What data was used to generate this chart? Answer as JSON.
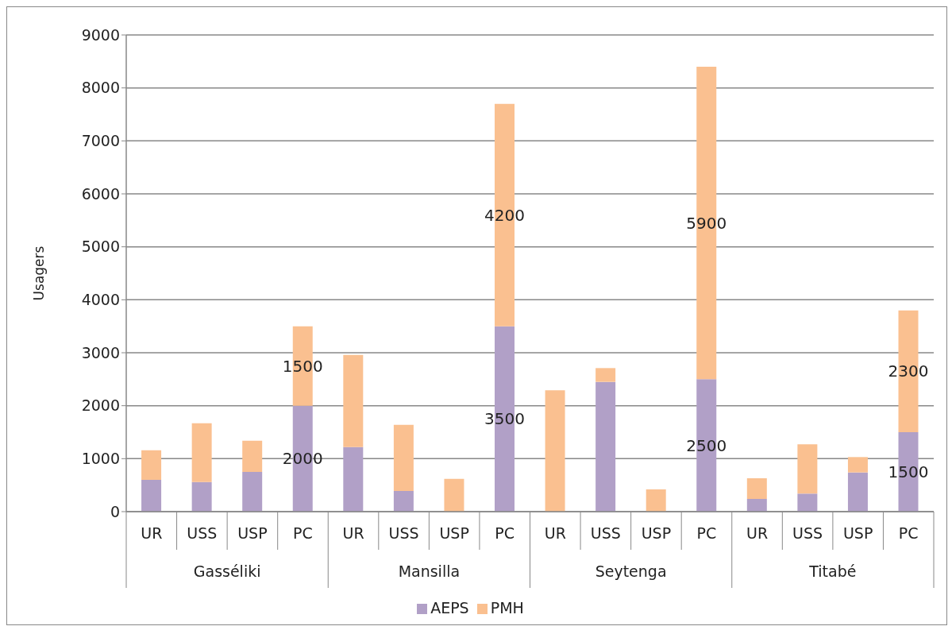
{
  "chart_data": {
    "type": "bar",
    "stacked": true,
    "ylabel": "Usagers",
    "categories": [
      "UR",
      "USS",
      "USP",
      "PC",
      "UR",
      "USS",
      "USP",
      "PC",
      "UR",
      "USS",
      "USP",
      "PC",
      "UR",
      "USS",
      "USP",
      "PC"
    ],
    "annotations": [
      "Gasséliki",
      "Mansilla",
      "Seytenga",
      "Titabé"
    ],
    "series": [
      {
        "name": "AEPS",
        "color": "#b1a0c7",
        "values": [
          600,
          560,
          750,
          2000,
          1220,
          390,
          0,
          3500,
          0,
          2450,
          0,
          2500,
          240,
          340,
          740,
          1500
        ],
        "value_labels": [
          null,
          null,
          null,
          "2000",
          null,
          null,
          null,
          "3500",
          null,
          null,
          null,
          "2500",
          null,
          null,
          null,
          "1500"
        ]
      },
      {
        "name": "PMH",
        "color": "#fac090",
        "values": [
          560,
          1110,
          590,
          1500,
          1740,
          1250,
          620,
          4200,
          2290,
          260,
          420,
          5900,
          390,
          930,
          290,
          2300
        ],
        "value_labels": [
          null,
          null,
          null,
          "1500",
          null,
          null,
          null,
          "4200",
          null,
          null,
          null,
          "5900",
          null,
          null,
          null,
          "2300"
        ]
      }
    ],
    "ylim": [
      0,
      9000
    ],
    "yticks": [
      0,
      1000,
      2000,
      3000,
      4000,
      5000,
      6000,
      7000,
      8000,
      9000
    ],
    "grid": "y",
    "legend": "bottom"
  }
}
